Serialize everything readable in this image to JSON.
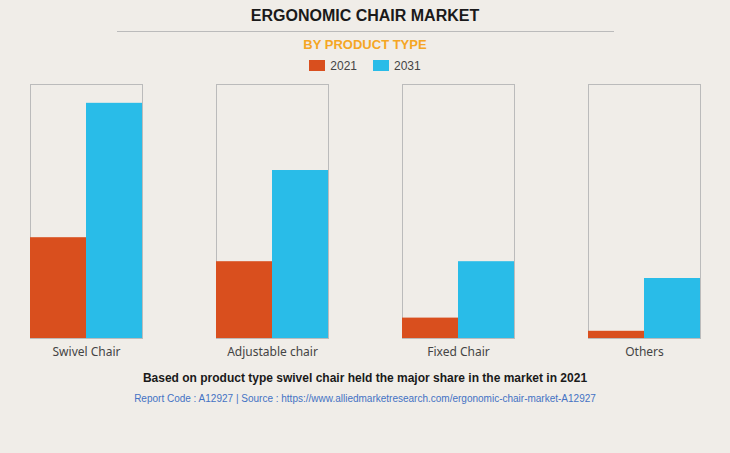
{
  "chart_data": {
    "type": "bar",
    "title": "ERGONOMIC CHAIR MARKET",
    "subtitle": "BY PRODUCT TYPE",
    "categories": [
      "Swivel Chair",
      "Adjustable chair",
      "Fixed Chair",
      "Others"
    ],
    "series": [
      {
        "name": "2021",
        "color": "#d94f1e",
        "values": [
          4.2,
          3.2,
          0.85,
          0.3
        ]
      },
      {
        "name": "2031",
        "color": "#29bce8",
        "values": [
          9.8,
          7.0,
          3.2,
          2.5
        ]
      }
    ],
    "ylim": [
      0,
      10.584
    ],
    "grid": false,
    "legend": "top",
    "tick_labels": "x",
    "annotations": [
      "Based on product type swivel chair held the major share in the market in 2021",
      "Report Code : A12927  |  Source : https://www.alliedmarketresearch.com/ergonomic-chair-market-A12927"
    ]
  }
}
